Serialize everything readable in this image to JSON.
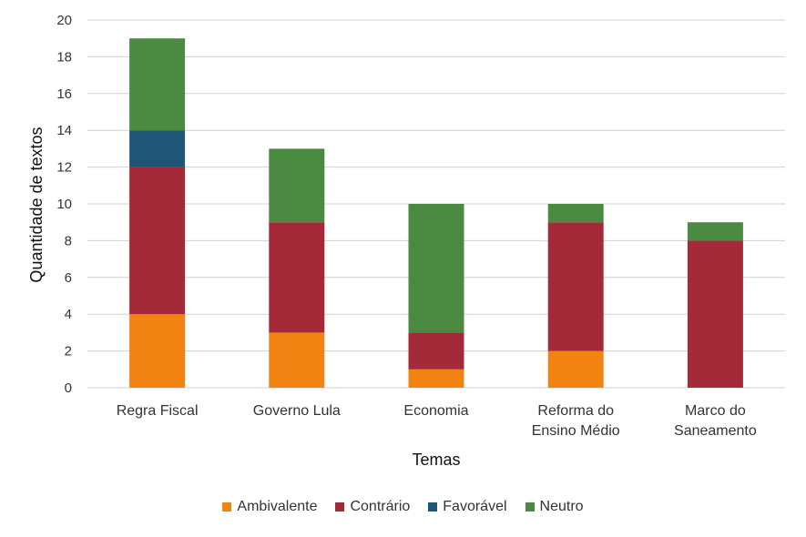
{
  "chart_data": {
    "type": "bar",
    "stacked": true,
    "categories": [
      [
        "Regra Fiscal"
      ],
      [
        "Governo Lula"
      ],
      [
        "Economia"
      ],
      [
        "Reforma do",
        "Ensino Médio"
      ],
      [
        "Marco do",
        "Saneamento"
      ]
    ],
    "series": [
      {
        "name": "Ambivalente",
        "color": "#F08312",
        "values": [
          4,
          3,
          1,
          2,
          0
        ]
      },
      {
        "name": "Contrário",
        "color": "#A42A3A",
        "values": [
          8,
          6,
          2,
          7,
          8
        ]
      },
      {
        "name": "Favorável",
        "color": "#1F5678",
        "values": [
          2,
          0,
          0,
          0,
          0
        ]
      },
      {
        "name": "Neutro",
        "color": "#4A8A41",
        "values": [
          5,
          4,
          7,
          1,
          1
        ]
      }
    ],
    "xlabel": "Temas",
    "ylabel": "Quantidade de textos",
    "ylim": [
      0,
      20
    ],
    "yticks": [
      0,
      2,
      4,
      6,
      8,
      10,
      12,
      14,
      16,
      18,
      20
    ],
    "grid": true,
    "legend_position": "bottom"
  }
}
